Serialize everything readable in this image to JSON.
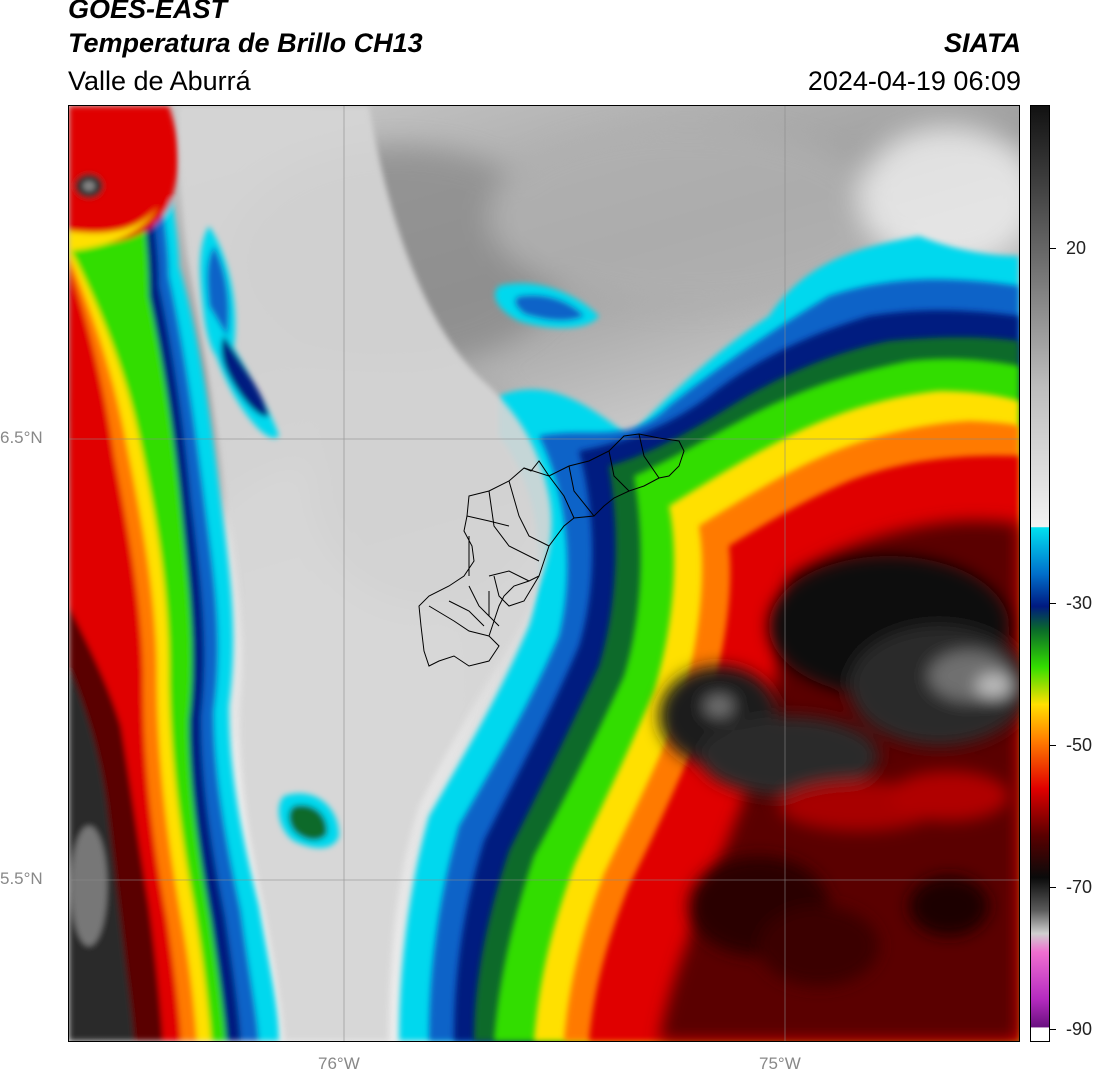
{
  "header": {
    "satellite": "GOES-EAST",
    "product": "Temperatura de Brillo CH13",
    "region": "Valle de Aburrá",
    "agency": "SIATA",
    "datetime": "2024-04-19 06:09"
  },
  "map": {
    "lat_labels": [
      "6.5°N",
      "5.5°N"
    ],
    "lon_labels": [
      "76°W",
      "75°W"
    ],
    "gridlines": true
  },
  "colorbar": {
    "ticks": [
      "20",
      "-30",
      "-50",
      "-70",
      "-90"
    ],
    "tick_values": [
      20,
      -30,
      -50,
      -70,
      -90
    ],
    "range": [
      -92,
      40
    ],
    "colors": {
      "cold_white": "#ffffff",
      "magenta": "#b52bc0",
      "dark_gray": "#3a3a3a",
      "black": "#0a0a0a",
      "dark_red": "#5a0000",
      "red": "#e00000",
      "orange": "#ff7a00",
      "yellow": "#ffe000",
      "green": "#33dd00",
      "dark_green": "#0a6a2a",
      "navy": "#001a80",
      "blue": "#0070cc",
      "cyan": "#00e0f0",
      "light_gray": "#e6e6e6",
      "mid_gray": "#8a8a8a",
      "warm_black": "#111111"
    }
  }
}
